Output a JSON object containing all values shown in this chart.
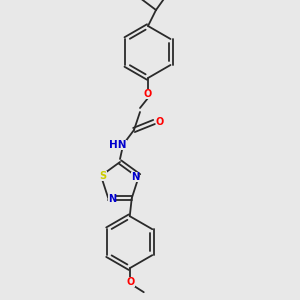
{
  "bg_color": "#e8e8e8",
  "bond_color": "#2a2a2a",
  "atom_colors": {
    "O": "#ff0000",
    "N": "#0000cd",
    "S": "#cccc00",
    "C": "#2a2a2a",
    "H": "#2a2a2a"
  },
  "font_size": 7.0,
  "bond_width": 1.3
}
